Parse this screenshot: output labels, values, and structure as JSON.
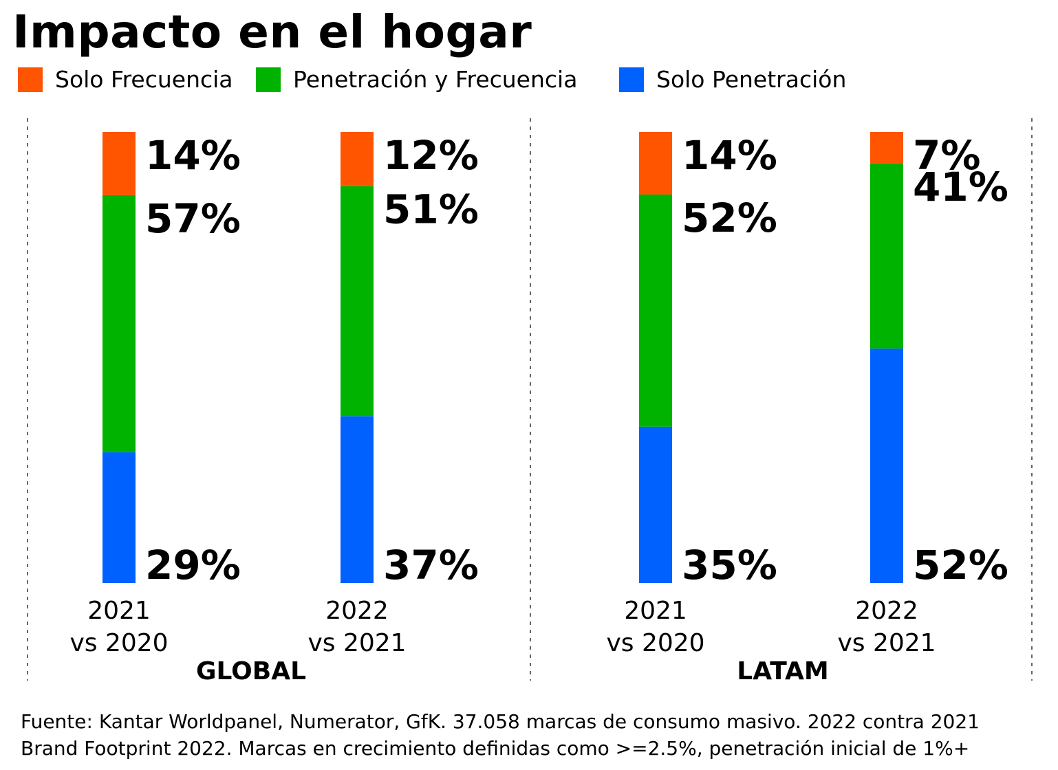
{
  "title": "Impacto en el hogar",
  "legend": [
    {
      "label": "Solo Frecuencia",
      "color": "#ff5500"
    },
    {
      "label": "Penetración y Frecuencia",
      "color": "#00b300"
    },
    {
      "label": "Solo Penetración",
      "color": "#0061ff"
    }
  ],
  "chart_data": {
    "type": "bar",
    "stacked": true,
    "value_unit": "%",
    "groups": [
      {
        "name": "GLOBAL",
        "categories": [
          [
            "2021",
            "vs 2020"
          ],
          [
            "2022",
            "vs 2021"
          ]
        ]
      },
      {
        "name": "LATAM",
        "categories": [
          [
            "2021",
            "vs 2020"
          ],
          [
            "2022",
            "vs 2021"
          ]
        ]
      }
    ],
    "series": [
      {
        "name": "Solo Penetración",
        "color": "#0061ff",
        "values": [
          29,
          37,
          35,
          52
        ]
      },
      {
        "name": "Penetración y Frecuencia",
        "color": "#00b300",
        "values": [
          57,
          51,
          52,
          41
        ]
      },
      {
        "name": "Solo Frecuencia",
        "color": "#ff5500",
        "values": [
          14,
          12,
          14,
          7
        ]
      }
    ],
    "data_labels": [
      "29%",
      "37%",
      "35%",
      "52%",
      "57%",
      "51%",
      "52%",
      "41%",
      "14%",
      "12%",
      "14%",
      "7%"
    ],
    "ylim": [
      0,
      100
    ],
    "grid": false,
    "legend_position": "top"
  },
  "footer": {
    "line1": "Fuente: Kantar Worldpanel, Numerator, GfK. 37.058 marcas de consumo masivo. 2022 contra 2021",
    "line2": "Brand Footprint 2022. Marcas en crecimiento definidas como >=2.5%, penetración inicial de 1%+"
  }
}
